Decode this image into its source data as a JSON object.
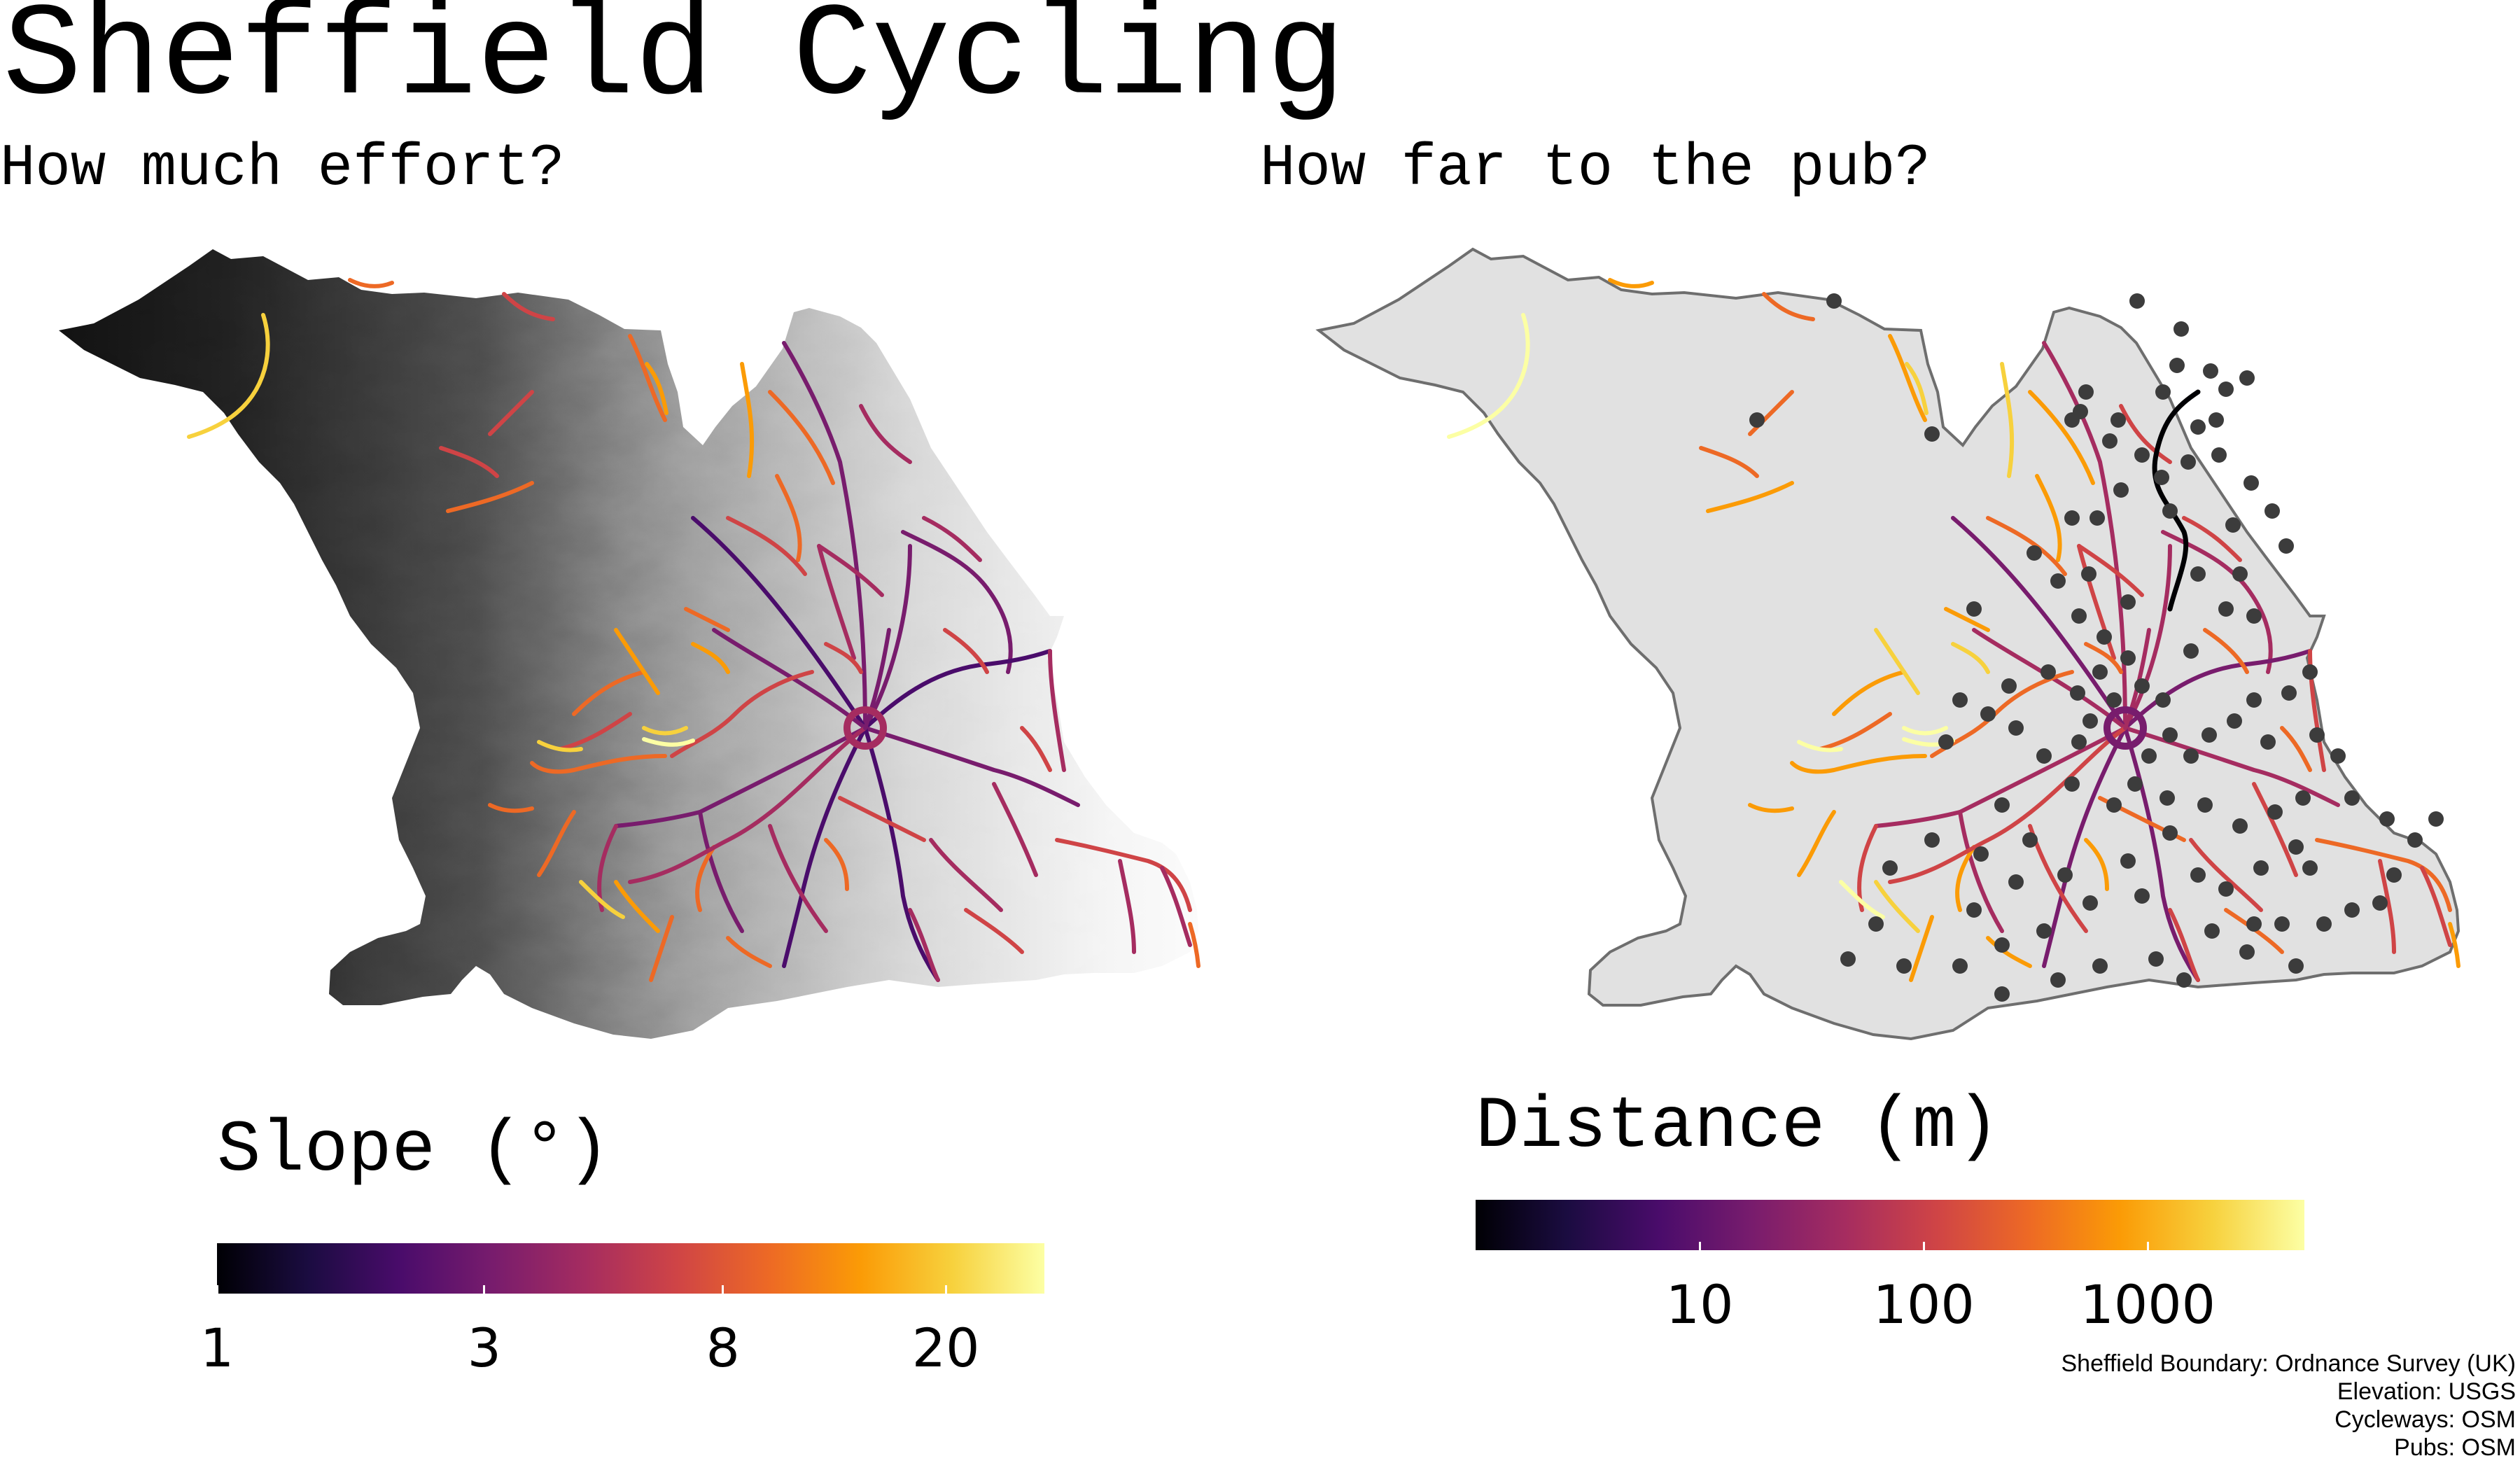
{
  "title": "Sheffield Cycling",
  "panels": [
    {
      "subtitle": "How much effort?",
      "legend": {
        "title": "Slope (°)",
        "scale": "log",
        "range": [
          1,
          30
        ],
        "ticks": [
          "1",
          "3",
          "8",
          "20"
        ],
        "tick_values": [
          1,
          3,
          8,
          20
        ]
      }
    },
    {
      "subtitle": "How far to the pub?",
      "legend": {
        "title": "Distance (m)",
        "scale": "log",
        "range": [
          1,
          5000
        ],
        "ticks": [
          "10",
          "100",
          "1000"
        ],
        "tick_values": [
          10,
          100,
          1000
        ]
      }
    }
  ],
  "credits": [
    "Sheffield Boundary: Ordnance Survey (UK)",
    "Elevation: USGS",
    "Cycleways: OSM",
    "Pubs: OSM"
  ],
  "colors": {
    "palette": "inferno",
    "boundary_fill": "#e1e1e1",
    "boundary_stroke": "#6e6e6e",
    "pub": "#3c3c3c",
    "inferno_stops": [
      "#000004",
      "#1b0c41",
      "#4a0c6b",
      "#781c6d",
      "#a52c60",
      "#cf4446",
      "#ed6925",
      "#fb9b06",
      "#f7d13d",
      "#fcffa4"
    ]
  }
}
